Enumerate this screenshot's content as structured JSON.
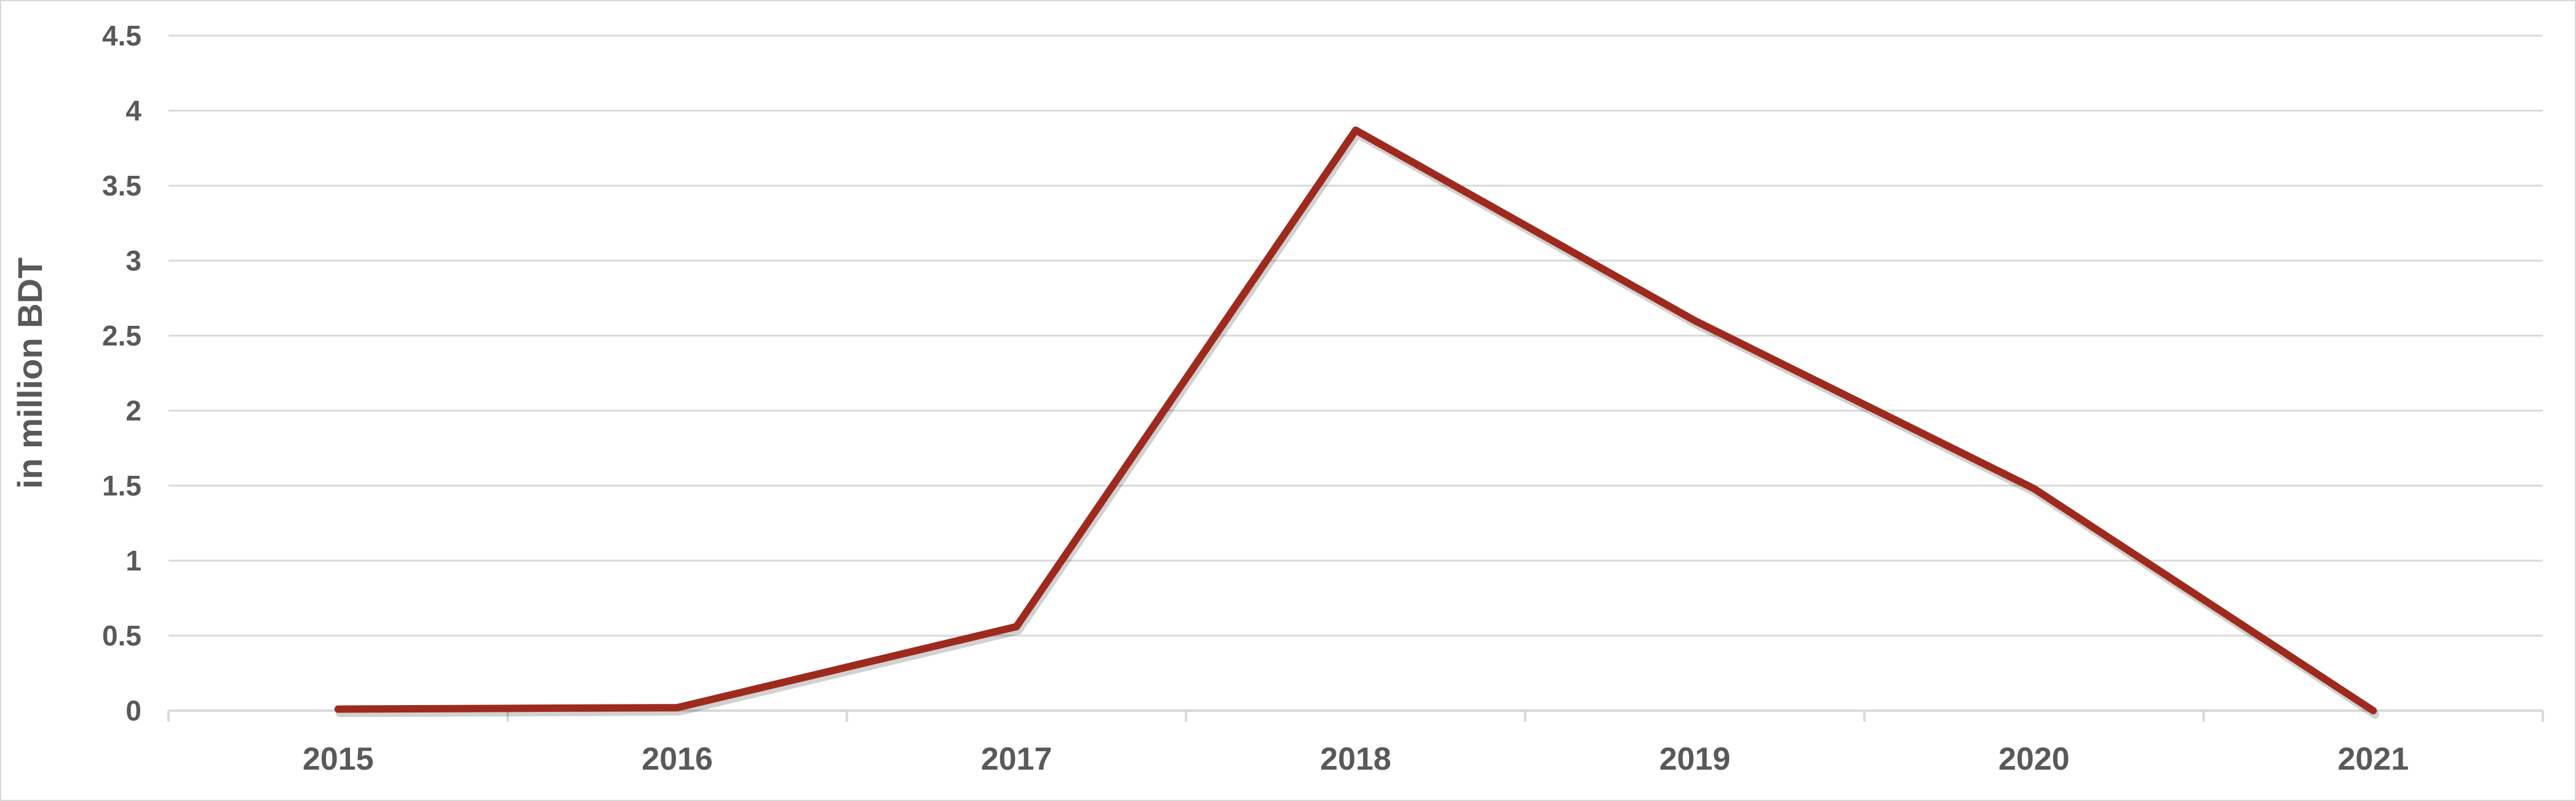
{
  "chart_data": {
    "type": "line",
    "title": "",
    "xlabel": "",
    "ylabel": "in million BDT",
    "categories": [
      "2015",
      "2016",
      "2017",
      "2018",
      "2019",
      "2020",
      "2021"
    ],
    "series": [
      {
        "values": [
          0.01,
          0.02,
          0.56,
          3.87,
          2.6,
          1.48,
          0.0
        ],
        "color": "#9e2a1e"
      }
    ],
    "ylim": [
      0,
      4.5
    ],
    "yticks": [
      "0",
      "0.5",
      "1",
      "1.5",
      "2",
      "2.5",
      "3",
      "3.5",
      "4",
      "4.5"
    ],
    "grid": true,
    "legend": "none"
  }
}
